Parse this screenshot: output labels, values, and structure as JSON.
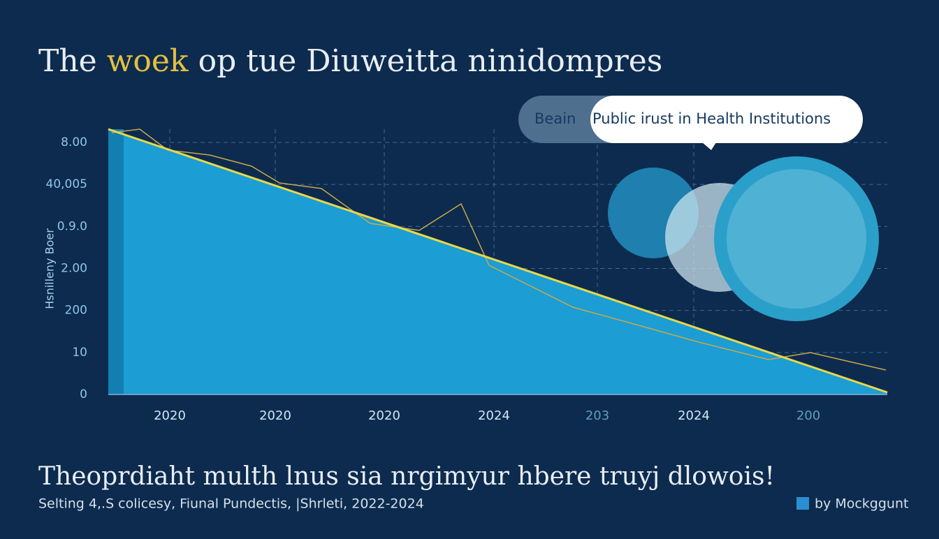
{
  "header": {
    "title": [
      "The",
      "woek",
      "op tue Diuweitta ninidompres"
    ]
  },
  "callout": {
    "left": "Beain",
    "right": "Public irust in Health Institutions"
  },
  "axis": {
    "y_title": "Hsnilleny Boer",
    "y_labels": [
      "8.00",
      "40,005",
      "0.9.0",
      "2.00",
      "200",
      "10",
      "0"
    ],
    "x_labels": [
      "2020",
      "2020",
      "2020",
      "2024",
      "203",
      "2024",
      "200"
    ]
  },
  "footer": {
    "headline": "Theoprdiaht multh lnus sia nrgimyur hbere truyj dlowois!",
    "source": "Selting 4,.S colicesy, Fiunal Pundectis, |Shrleti, 2022-2024",
    "brand": "by Mockggunt"
  }
}
